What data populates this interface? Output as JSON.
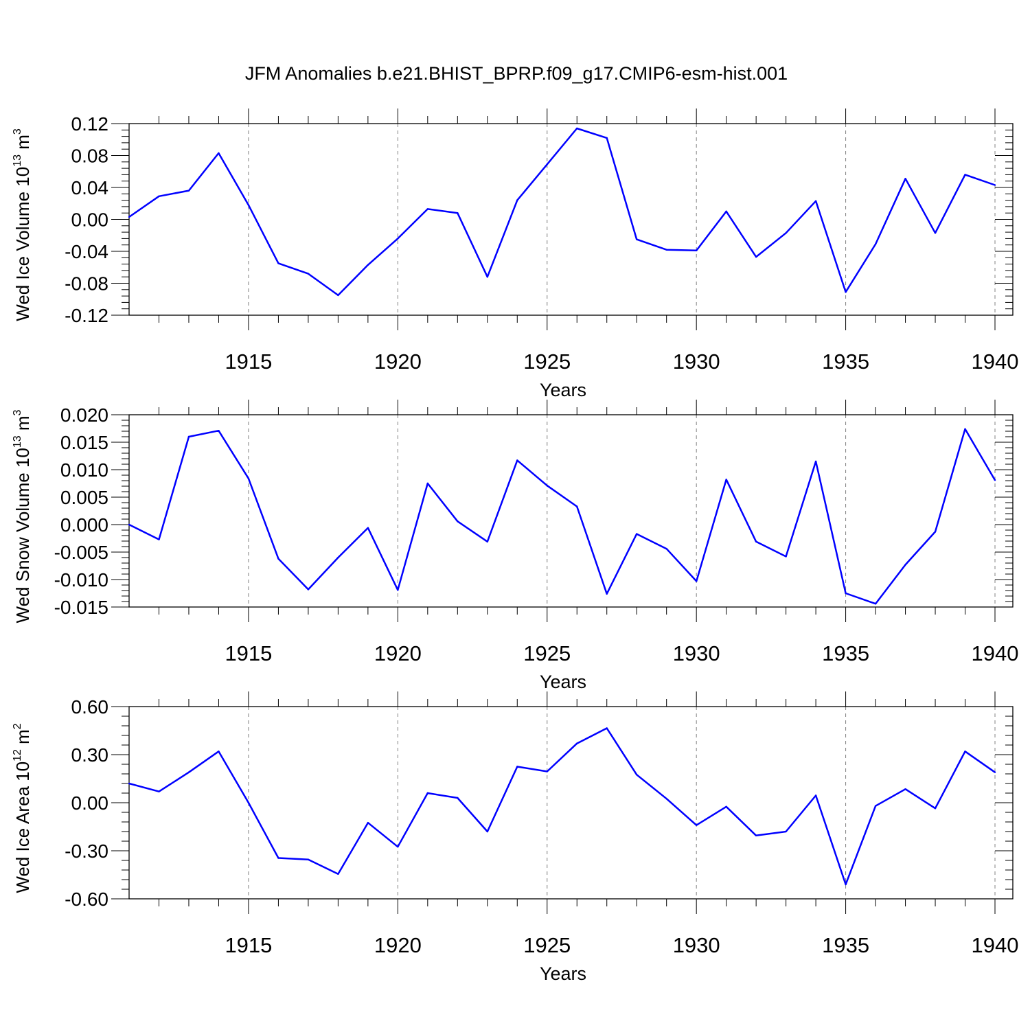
{
  "title": "JFM Anomalies b.e21.BHIST_BPRP.f09_g17.CMIP6-esm-hist.001",
  "colors": {
    "line": "#0000ff",
    "axis": "#000000",
    "grid": "#808080"
  },
  "chart_data": [
    {
      "type": "line",
      "name": "ice-volume",
      "title": "JFM Anomalies b.e21.BHIST_BPRP.f09_g17.CMIP6-esm-hist.001",
      "ylabel": {
        "pre": "Wed Ice Volume 10",
        "sup": "13",
        "mid": " m",
        "sup2": "3"
      },
      "xlabel": "Years",
      "xlim": [
        1911,
        1940
      ],
      "ylim": [
        -0.12,
        0.12
      ],
      "yticks": [
        -0.12,
        -0.08,
        -0.04,
        0.0,
        0.04,
        0.08,
        0.12
      ],
      "ytick_labels": [
        "-0.12",
        "-0.08",
        "-0.04",
        "0.00",
        "0.04",
        "0.08",
        "0.12"
      ],
      "xticks": [
        1915,
        1920,
        1925,
        1930,
        1935,
        1940
      ],
      "xtick_labels": [
        "1915",
        "1920",
        "1925",
        "1930",
        "1935",
        "1940"
      ],
      "x": [
        1911,
        1912,
        1913,
        1914,
        1915,
        1916,
        1917,
        1918,
        1919,
        1920,
        1921,
        1922,
        1923,
        1924,
        1925,
        1926,
        1927,
        1928,
        1929,
        1930,
        1931,
        1932,
        1933,
        1934,
        1935,
        1936,
        1937,
        1938,
        1939,
        1940
      ],
      "series": [
        {
          "name": "Wed Ice Volume",
          "values": [
            0.003,
            0.029,
            0.036,
            0.083,
            0.018,
            -0.055,
            -0.068,
            -0.095,
            -0.057,
            -0.024,
            0.013,
            0.008,
            -0.072,
            0.024,
            0.069,
            0.114,
            0.102,
            -0.025,
            -0.038,
            -0.039,
            0.01,
            -0.047,
            -0.017,
            0.023,
            -0.091,
            -0.031,
            0.051,
            -0.017,
            0.056,
            0.043
          ]
        }
      ]
    },
    {
      "type": "line",
      "name": "snow-volume",
      "ylabel": {
        "pre": "Wed Snow Volume 10",
        "sup": "13",
        "mid": " m",
        "sup2": "3"
      },
      "xlabel": "Years",
      "xlim": [
        1911,
        1940
      ],
      "ylim": [
        -0.015,
        0.02
      ],
      "yticks": [
        -0.015,
        -0.01,
        -0.005,
        0.0,
        0.005,
        0.01,
        0.015,
        0.02
      ],
      "ytick_labels": [
        "-0.015",
        "-0.010",
        "-0.005",
        "0.000",
        "0.005",
        "0.010",
        "0.015",
        "0.020"
      ],
      "xticks": [
        1915,
        1920,
        1925,
        1930,
        1935,
        1940
      ],
      "xtick_labels": [
        "1915",
        "1920",
        "1925",
        "1930",
        "1935",
        "1940"
      ],
      "x": [
        1911,
        1912,
        1913,
        1914,
        1915,
        1916,
        1917,
        1918,
        1919,
        1920,
        1921,
        1922,
        1923,
        1924,
        1925,
        1926,
        1927,
        1928,
        1929,
        1930,
        1931,
        1932,
        1933,
        1934,
        1935,
        1936,
        1937,
        1938,
        1939,
        1940
      ],
      "series": [
        {
          "name": "Wed Snow Volume",
          "values": [
            0.0,
            -0.0027,
            0.016,
            0.0171,
            0.0084,
            -0.0062,
            -0.0118,
            -0.006,
            -0.0006,
            -0.0119,
            0.0075,
            0.0006,
            -0.0031,
            0.0117,
            0.0071,
            0.0033,
            -0.0126,
            -0.0017,
            -0.0044,
            -0.0103,
            0.0082,
            -0.0031,
            -0.0058,
            0.0115,
            -0.0125,
            -0.0144,
            -0.0073,
            -0.0013,
            0.0174,
            0.0081
          ]
        }
      ]
    },
    {
      "type": "line",
      "name": "ice-area",
      "ylabel": {
        "pre": "Wed Ice Area 10",
        "sup": "12",
        "mid": " m",
        "sup2": "2"
      },
      "xlabel": "Years",
      "xlim": [
        1911,
        1940
      ],
      "ylim": [
        -0.6,
        0.6
      ],
      "yticks": [
        -0.6,
        -0.3,
        0.0,
        0.3,
        0.6
      ],
      "ytick_labels": [
        "-0.60",
        "-0.30",
        "0.00",
        "0.30",
        "0.60"
      ],
      "xticks": [
        1915,
        1920,
        1925,
        1930,
        1935,
        1940
      ],
      "xtick_labels": [
        "1915",
        "1920",
        "1925",
        "1930",
        "1935",
        "1940"
      ],
      "x": [
        1911,
        1912,
        1913,
        1914,
        1915,
        1916,
        1917,
        1918,
        1919,
        1920,
        1921,
        1922,
        1923,
        1924,
        1925,
        1926,
        1927,
        1928,
        1929,
        1930,
        1931,
        1932,
        1933,
        1934,
        1935,
        1936,
        1937,
        1938,
        1939,
        1940
      ],
      "series": [
        {
          "name": "Wed Ice Area",
          "values": [
            0.12,
            0.07,
            0.19,
            0.32,
            0.0,
            -0.345,
            -0.355,
            -0.445,
            -0.125,
            -0.275,
            0.06,
            0.03,
            -0.18,
            0.225,
            0.195,
            0.37,
            0.465,
            0.175,
            0.025,
            -0.14,
            -0.025,
            -0.205,
            -0.18,
            0.045,
            -0.51,
            -0.02,
            0.085,
            -0.035,
            0.32,
            0.19
          ]
        }
      ]
    }
  ]
}
